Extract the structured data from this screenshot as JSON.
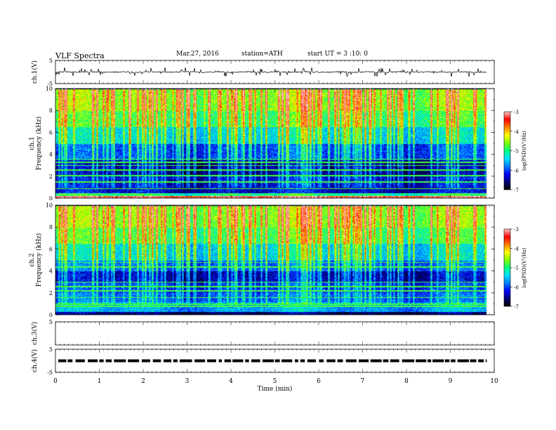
{
  "header": {
    "title": "VLF  Spectra",
    "date": "Mar.27, 2016",
    "station": "station=ATH",
    "start": "start  UT =   3  :10: 0"
  },
  "colors": {
    "background": "#ffffff",
    "axis": "#000000",
    "trace": "#000000",
    "colormap": [
      "#000000",
      "#000070",
      "#0000ff",
      "#0080ff",
      "#00e0ff",
      "#00ff80",
      "#80ff00",
      "#ffff00",
      "#ff8000",
      "#ff0000",
      "#ffc8c8"
    ]
  },
  "chart_data": {
    "type": "heatmap",
    "xlabel": "Time (min)",
    "xlim": [
      0,
      10
    ],
    "xticks": [
      "0",
      "1",
      "2",
      "3",
      "4",
      "5",
      "6",
      "7",
      "8",
      "9",
      "10"
    ],
    "data_end_min": 9.83,
    "panels": [
      {
        "kind": "waveform",
        "ylabel": "ch.1(V)",
        "ylim": [
          -5,
          5
        ],
        "yticks": [
          "5",
          "-5"
        ],
        "baseline": 0.0,
        "noise_amplitude": 0.25,
        "spike_amplitude": 2.0
      },
      {
        "kind": "spectrogram",
        "ylabel": "ch.1 Frequency (kHz)",
        "ylim": [
          0,
          10
        ],
        "yticks": [
          "0",
          "2",
          "4",
          "6",
          "8",
          "10"
        ],
        "colorbar": {
          "label": "log(PSD)(V²/Hz)",
          "range": [
            -7,
            -3
          ],
          "ticks": [
            "-3",
            "-4",
            "-5",
            "-6",
            "-7"
          ]
        },
        "bands": [
          {
            "f_min": 0.0,
            "f_max": 0.2,
            "level": -3.2
          },
          {
            "f_min": 0.2,
            "f_max": 0.5,
            "level": -5.0
          },
          {
            "f_min": 0.5,
            "f_max": 2.0,
            "level": -6.3
          },
          {
            "f_min": 2.0,
            "f_max": 3.5,
            "level": -6.5
          },
          {
            "f_min": 3.5,
            "f_max": 5.0,
            "level": -6.0
          },
          {
            "f_min": 5.0,
            "f_max": 6.5,
            "level": -5.4
          },
          {
            "f_min": 6.5,
            "f_max": 8.0,
            "level": -4.9
          },
          {
            "f_min": 8.0,
            "f_max": 10.0,
            "level": -4.6
          }
        ],
        "lines_khz": [
          0.9,
          1.5,
          2.1,
          2.6,
          3.0,
          3.3,
          3.6
        ]
      },
      {
        "kind": "spectrogram",
        "ylabel": "ch.2 Frequency (kHz)",
        "ylim": [
          0,
          10
        ],
        "yticks": [
          "0",
          "2",
          "4",
          "6",
          "8",
          "10"
        ],
        "colorbar": {
          "label": "log(PSD)(V²/Hz)",
          "range": [
            -7,
            -3
          ],
          "ticks": [
            "-3",
            "-4",
            "-5",
            "-6",
            "-7"
          ]
        },
        "bands": [
          {
            "f_min": 0.0,
            "f_max": 0.3,
            "level": -6.6
          },
          {
            "f_min": 0.3,
            "f_max": 1.2,
            "level": -5.6
          },
          {
            "f_min": 1.2,
            "f_max": 2.0,
            "level": -5.9
          },
          {
            "f_min": 2.0,
            "f_max": 3.0,
            "level": -6.1
          },
          {
            "f_min": 3.0,
            "f_max": 4.0,
            "level": -6.4
          },
          {
            "f_min": 4.0,
            "f_max": 5.0,
            "level": -5.9
          },
          {
            "f_min": 5.0,
            "f_max": 6.5,
            "level": -5.4
          },
          {
            "f_min": 6.5,
            "f_max": 8.0,
            "level": -4.9
          },
          {
            "f_min": 8.0,
            "f_max": 10.0,
            "level": -4.6
          }
        ],
        "lines_khz": [
          0.8,
          1.0,
          1.6,
          2.2,
          2.6,
          3.0,
          4.4,
          4.8
        ]
      },
      {
        "kind": "empty",
        "ylabel": "ch.3(V)",
        "ylim": [
          -5,
          5
        ],
        "yticks": [
          "5"
        ]
      },
      {
        "kind": "dashed",
        "ylabel": "ch.4(V)",
        "ylim": [
          -5,
          5
        ],
        "yticks": [
          "5",
          "-5"
        ],
        "level": 0.0
      }
    ]
  }
}
